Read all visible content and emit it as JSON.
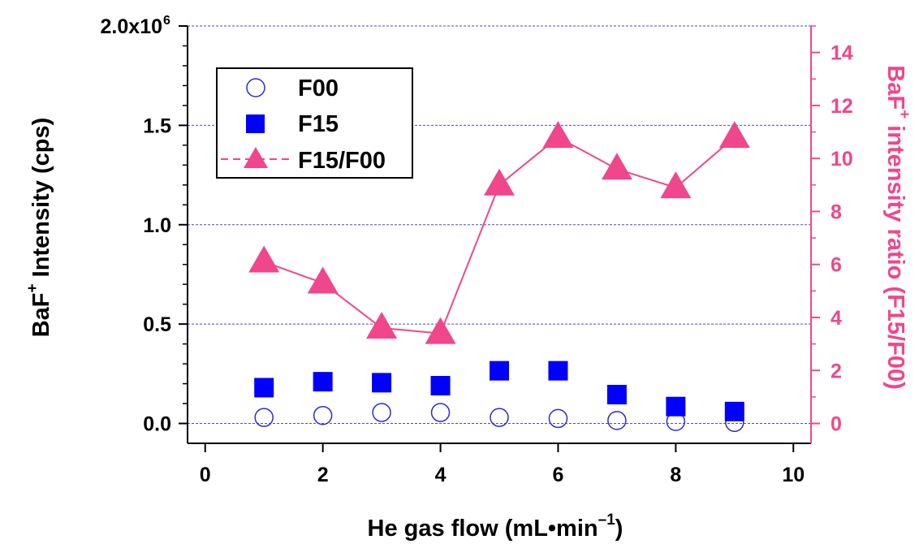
{
  "chart_data": {
    "type": "scatter",
    "xlabel": {
      "main": "He gas flow (mL•min",
      "sup": "–1",
      "end": ")"
    },
    "ylabel_left": {
      "main": "BaF",
      "sup": "+",
      "end": " Intensity (cps)"
    },
    "ylabel_right": {
      "main": "BaF",
      "sup": "+",
      "end": " intensity ratio (F15/F00)"
    },
    "xlim": [
      -0.3,
      10.3
    ],
    "ylim_left": [
      -0.1,
      2.0
    ],
    "ylim_right": [
      -0.75,
      15
    ],
    "x_ticks": [
      "0",
      "2",
      "4",
      "6",
      "8",
      "10"
    ],
    "y_left_ticks": [
      "0.0",
      "0.5",
      "1.0",
      "1.5",
      "2.0x10"
    ],
    "y_left_top_exponent": "6",
    "y_right_ticks": [
      "0",
      "2",
      "4",
      "6",
      "8",
      "10",
      "12",
      "14"
    ],
    "grid": "horizontal dotted at left-axis ticks",
    "legend_position": "top-left",
    "colors": {
      "F00": "#2b2bd6",
      "F15": "#0000ff",
      "ratio": "#f0468c",
      "grid": "#4a4ad0",
      "axis": "#000000"
    },
    "series": [
      {
        "name": "F00",
        "axis": "left",
        "marker": "open-circle",
        "x": [
          1,
          2,
          3,
          4,
          5,
          6,
          7,
          8,
          9
        ],
        "y": [
          0.03,
          0.04,
          0.055,
          0.055,
          0.03,
          0.025,
          0.015,
          0.01,
          0.005
        ]
      },
      {
        "name": "F15",
        "axis": "left",
        "marker": "filled-square",
        "x": [
          1,
          2,
          3,
          4,
          5,
          6,
          7,
          8,
          9
        ],
        "y": [
          0.18,
          0.21,
          0.205,
          0.19,
          0.265,
          0.265,
          0.145,
          0.085,
          0.06
        ]
      },
      {
        "name": "F15/F00",
        "axis": "right",
        "marker": "filled-triangle-line",
        "x": [
          1,
          2,
          3,
          4,
          5,
          6,
          7,
          8,
          9
        ],
        "y": [
          6.1,
          5.3,
          3.6,
          3.4,
          9.0,
          10.8,
          9.6,
          8.9,
          10.8
        ]
      }
    ]
  }
}
